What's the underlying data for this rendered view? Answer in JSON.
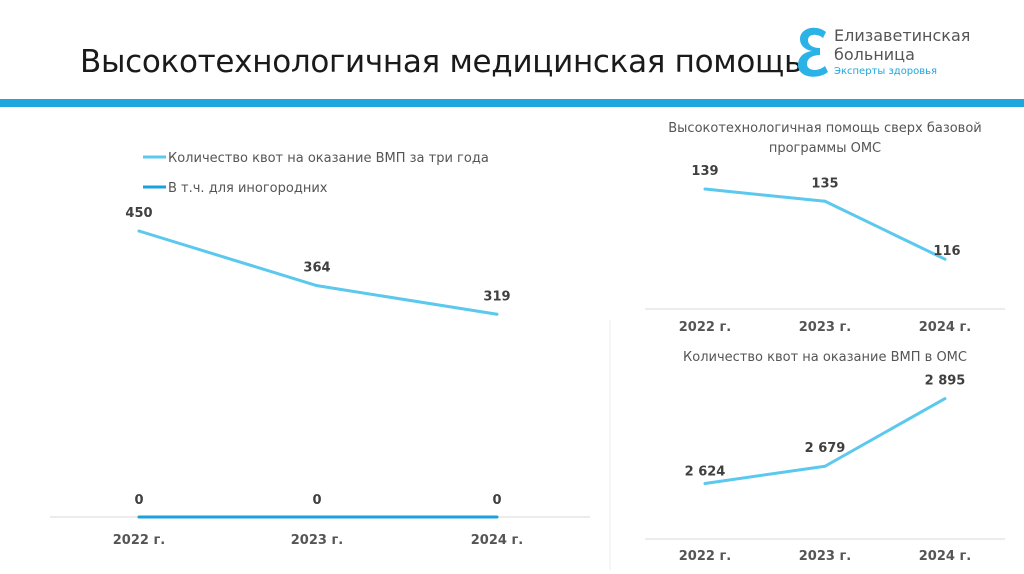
{
  "header": {
    "title": "Высокотехнологичная медицинская помощь",
    "accent_color": "#1ea6de"
  },
  "logo": {
    "line1": "Елизаветинская",
    "line2": "больница",
    "tagline": "Эксперты здоровья"
  },
  "chart_data": [
    {
      "type": "line",
      "title": "",
      "categories": [
        "2022 г.",
        "2023 г.",
        "2024 г."
      ],
      "series": [
        {
          "name": "Количество квот на оказание ВМП за три года",
          "values": [
            450,
            364,
            319
          ],
          "labels": [
            "450",
            "364",
            "319"
          ],
          "color": "#5bc8ee"
        },
        {
          "name": "В т.ч. для иногородних",
          "values": [
            0,
            0,
            0
          ],
          "labels": [
            "0",
            "0",
            "0"
          ],
          "color": "#1ba1db"
        }
      ],
      "legend": "top-left",
      "ylim": [
        0,
        450
      ],
      "grid": false
    },
    {
      "type": "line",
      "title": "Высокотехнологичная помощь сверх базовой программы ОМС",
      "categories": [
        "2022 г.",
        "2023 г.",
        "2024 г."
      ],
      "series": [
        {
          "values": [
            139,
            135,
            116
          ],
          "labels": [
            "139",
            "135",
            "116"
          ],
          "color": "#5bc8ee"
        }
      ],
      "ylim": [
        100,
        140
      ],
      "grid": false
    },
    {
      "type": "line",
      "title": "Количество квот на оказание ВМП в ОМС",
      "categories": [
        "2022 г.",
        "2023 г.",
        "2024 г."
      ],
      "series": [
        {
          "values": [
            2624,
            2679,
            2895
          ],
          "labels": [
            "2 624",
            "2 679",
            "2 895"
          ],
          "color": "#5bc8ee"
        }
      ],
      "ylim": [
        2450,
        2900
      ],
      "grid": false
    }
  ]
}
